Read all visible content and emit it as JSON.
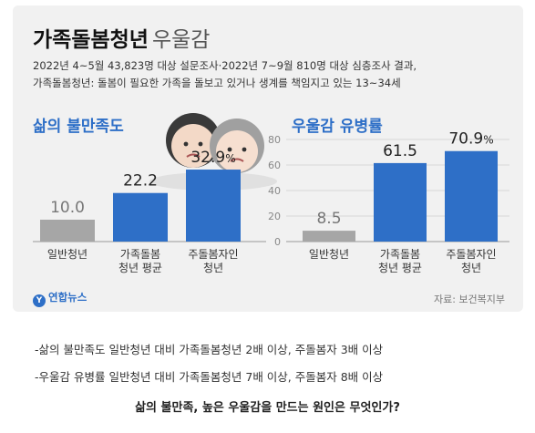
{
  "title": "가족돌봄청년",
  "title_suffix": "우울감",
  "description_lines": [
    "2022년 4~5월 43,823명 대상 설문조사·2022년 7~9월 810명 대상 심층조사 결과,",
    "가족돌봄청년: 돌봄이 필요한 가족을 돌보고 있거나 생계를 책임지고 있는 13~34세"
  ],
  "logo_text": "연합뉴스",
  "logo_mark": "Y",
  "source": "자료: 보건복지부",
  "notes": [
    "-삶의 불만족도 일반청년 대비 가족돌봄청년 2배 이상, 주돌봄자 3배 이상",
    "-우울감 유병률 일반청년 대비 가족돌봄청년 7배 이상, 주돌봄자 8배 이상"
  ],
  "question": "삶의 불만족, 높은 우울감을 만드는 원인은 무엇인가?",
  "colors": {
    "accent": "#2e6fc7",
    "baseline": "#a6a6a6",
    "card": "#f1f1f1"
  },
  "chart_data": [
    {
      "type": "bar",
      "title": "삶의 불만족도",
      "categories": [
        "일반청년",
        "가족돌봄 청년 평균",
        "주돌봄자인 청년"
      ],
      "category_lines": [
        [
          "일반청년"
        ],
        [
          "가족돌봄",
          "청년 평균"
        ],
        [
          "주돌봄자인",
          "청년"
        ]
      ],
      "values": [
        10.0,
        22.2,
        32.9
      ],
      "value_labels": [
        "10.0",
        "22.2",
        "32.9"
      ],
      "unit": "%",
      "ylim": [
        0,
        40
      ]
    },
    {
      "type": "bar",
      "title": "우울감 유병률",
      "categories": [
        "일반청년",
        "가족돌봄 청년 평균",
        "주돌봄자인 청년"
      ],
      "category_lines": [
        [
          "일반청년"
        ],
        [
          "가족돌봄",
          "청년 평균"
        ],
        [
          "주돌봄자인",
          "청년"
        ]
      ],
      "values": [
        8.5,
        61.5,
        70.9
      ],
      "value_labels": [
        "8.5",
        "61.5",
        "70.9"
      ],
      "unit": "%",
      "ylim": [
        0,
        85
      ],
      "yticks": [
        0,
        20,
        40,
        60,
        80
      ]
    }
  ]
}
